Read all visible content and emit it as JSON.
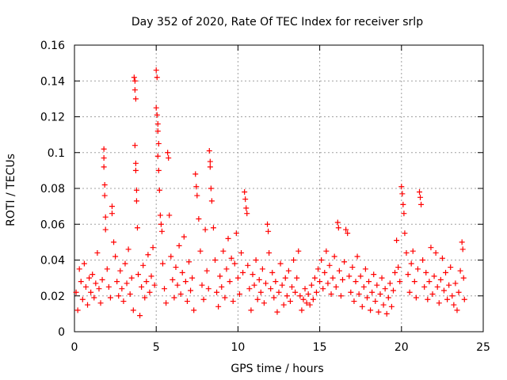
{
  "chart_data": {
    "type": "scatter",
    "title": "Day 352 of 2020, Rate Of TEC Index for receiver srlp",
    "xlabel": "GPS time / hours",
    "ylabel": "ROTI / TECUs",
    "xlim": [
      0,
      25
    ],
    "ylim": [
      0,
      0.16
    ],
    "x_ticks": [
      0,
      5,
      10,
      15,
      20,
      25
    ],
    "x_tick_labels": [
      "0",
      "5",
      "10",
      "15",
      "20",
      "25"
    ],
    "y_ticks": [
      0,
      0.02,
      0.04,
      0.06,
      0.08,
      0.1,
      0.12,
      0.14,
      0.16
    ],
    "y_tick_labels": [
      "0",
      "0.02",
      "0.04",
      "0.06",
      "0.08",
      "0.1",
      "0.12",
      "0.14",
      "0.16"
    ],
    "grid": true,
    "marker": "+",
    "color": "#ff0000",
    "series": [
      {
        "name": "ROTI",
        "points": [
          [
            0.1,
            0.022
          ],
          [
            0.2,
            0.012
          ],
          [
            0.3,
            0.035
          ],
          [
            0.4,
            0.028
          ],
          [
            0.5,
            0.018
          ],
          [
            0.6,
            0.038
          ],
          [
            0.7,
            0.025
          ],
          [
            0.8,
            0.015
          ],
          [
            0.9,
            0.03
          ],
          [
            1.0,
            0.022
          ],
          [
            1.1,
            0.032
          ],
          [
            1.2,
            0.019
          ],
          [
            1.3,
            0.027
          ],
          [
            1.4,
            0.044
          ],
          [
            1.5,
            0.024
          ],
          [
            1.6,
            0.016
          ],
          [
            1.7,
            0.029
          ],
          [
            1.8,
            0.102
          ],
          [
            1.8,
            0.097
          ],
          [
            1.8,
            0.092
          ],
          [
            1.85,
            0.082
          ],
          [
            1.85,
            0.076
          ],
          [
            1.9,
            0.064
          ],
          [
            1.9,
            0.057
          ],
          [
            2.0,
            0.035
          ],
          [
            2.1,
            0.025
          ],
          [
            2.2,
            0.019
          ],
          [
            2.3,
            0.07
          ],
          [
            2.3,
            0.066
          ],
          [
            2.4,
            0.05
          ],
          [
            2.5,
            0.042
          ],
          [
            2.6,
            0.028
          ],
          [
            2.7,
            0.02
          ],
          [
            2.8,
            0.034
          ],
          [
            2.9,
            0.024
          ],
          [
            3.0,
            0.017
          ],
          [
            3.1,
            0.038
          ],
          [
            3.2,
            0.027
          ],
          [
            3.3,
            0.046
          ],
          [
            3.4,
            0.021
          ],
          [
            3.5,
            0.03
          ],
          [
            3.6,
            0.012
          ],
          [
            3.65,
            0.142
          ],
          [
            3.7,
            0.14
          ],
          [
            3.7,
            0.135
          ],
          [
            3.75,
            0.13
          ],
          [
            3.7,
            0.104
          ],
          [
            3.75,
            0.094
          ],
          [
            3.75,
            0.09
          ],
          [
            3.8,
            0.079
          ],
          [
            3.8,
            0.073
          ],
          [
            3.85,
            0.058
          ],
          [
            3.9,
            0.032
          ],
          [
            4.0,
            0.009
          ],
          [
            4.1,
            0.025
          ],
          [
            4.2,
            0.037
          ],
          [
            4.3,
            0.019
          ],
          [
            4.4,
            0.028
          ],
          [
            4.5,
            0.043
          ],
          [
            4.6,
            0.022
          ],
          [
            4.7,
            0.031
          ],
          [
            4.8,
            0.047
          ],
          [
            4.9,
            0.026
          ],
          [
            5.0,
            0.146
          ],
          [
            5.05,
            0.142
          ],
          [
            5.0,
            0.125
          ],
          [
            5.05,
            0.121
          ],
          [
            5.1,
            0.116
          ],
          [
            5.1,
            0.112
          ],
          [
            5.15,
            0.105
          ],
          [
            5.1,
            0.098
          ],
          [
            5.15,
            0.09
          ],
          [
            5.2,
            0.079
          ],
          [
            5.25,
            0.065
          ],
          [
            5.3,
            0.06
          ],
          [
            5.35,
            0.056
          ],
          [
            5.4,
            0.038
          ],
          [
            5.5,
            0.024
          ],
          [
            5.6,
            0.016
          ],
          [
            5.7,
            0.1
          ],
          [
            5.75,
            0.097
          ],
          [
            5.8,
            0.065
          ],
          [
            5.9,
            0.042
          ],
          [
            6.0,
            0.029
          ],
          [
            6.1,
            0.019
          ],
          [
            6.2,
            0.036
          ],
          [
            6.3,
            0.026
          ],
          [
            6.4,
            0.048
          ],
          [
            6.5,
            0.021
          ],
          [
            6.6,
            0.033
          ],
          [
            6.7,
            0.053
          ],
          [
            6.8,
            0.028
          ],
          [
            6.9,
            0.017
          ],
          [
            7.0,
            0.039
          ],
          [
            7.1,
            0.023
          ],
          [
            7.2,
            0.03
          ],
          [
            7.3,
            0.012
          ],
          [
            7.4,
            0.088
          ],
          [
            7.45,
            0.081
          ],
          [
            7.5,
            0.076
          ],
          [
            7.6,
            0.063
          ],
          [
            7.7,
            0.045
          ],
          [
            7.8,
            0.026
          ],
          [
            7.9,
            0.018
          ],
          [
            8.0,
            0.057
          ],
          [
            8.1,
            0.034
          ],
          [
            8.2,
            0.024
          ],
          [
            8.25,
            0.101
          ],
          [
            8.3,
            0.095
          ],
          [
            8.3,
            0.092
          ],
          [
            8.35,
            0.08
          ],
          [
            8.4,
            0.073
          ],
          [
            8.5,
            0.058
          ],
          [
            8.6,
            0.04
          ],
          [
            8.7,
            0.022
          ],
          [
            8.8,
            0.014
          ],
          [
            8.9,
            0.031
          ],
          [
            9.0,
            0.025
          ],
          [
            9.1,
            0.045
          ],
          [
            9.2,
            0.019
          ],
          [
            9.3,
            0.035
          ],
          [
            9.4,
            0.052
          ],
          [
            9.5,
            0.028
          ],
          [
            9.6,
            0.041
          ],
          [
            9.7,
            0.017
          ],
          [
            9.8,
            0.038
          ],
          [
            9.9,
            0.055
          ],
          [
            10.0,
            0.03
          ],
          [
            10.1,
            0.021
          ],
          [
            10.2,
            0.044
          ],
          [
            10.3,
            0.033
          ],
          [
            10.4,
            0.078
          ],
          [
            10.45,
            0.074
          ],
          [
            10.5,
            0.069
          ],
          [
            10.55,
            0.066
          ],
          [
            10.6,
            0.037
          ],
          [
            10.7,
            0.024
          ],
          [
            10.8,
            0.012
          ],
          [
            10.9,
            0.032
          ],
          [
            11.0,
            0.026
          ],
          [
            11.1,
            0.04
          ],
          [
            11.2,
            0.018
          ],
          [
            11.3,
            0.029
          ],
          [
            11.4,
            0.022
          ],
          [
            11.5,
            0.035
          ],
          [
            11.6,
            0.016
          ],
          [
            11.7,
            0.027
          ],
          [
            11.8,
            0.06
          ],
          [
            11.85,
            0.056
          ],
          [
            11.9,
            0.044
          ],
          [
            12.0,
            0.024
          ],
          [
            12.1,
            0.033
          ],
          [
            12.2,
            0.019
          ],
          [
            12.3,
            0.028
          ],
          [
            12.4,
            0.011
          ],
          [
            12.5,
            0.022
          ],
          [
            12.6,
            0.038
          ],
          [
            12.7,
            0.026
          ],
          [
            12.8,
            0.015
          ],
          [
            12.9,
            0.03
          ],
          [
            13.0,
            0.02
          ],
          [
            13.1,
            0.034
          ],
          [
            13.2,
            0.017
          ],
          [
            13.3,
            0.025
          ],
          [
            13.4,
            0.04
          ],
          [
            13.5,
            0.022
          ],
          [
            13.6,
            0.03
          ],
          [
            13.7,
            0.045
          ],
          [
            13.8,
            0.02
          ],
          [
            13.9,
            0.012
          ],
          [
            14.0,
            0.018
          ],
          [
            14.1,
            0.024
          ],
          [
            14.2,
            0.016
          ],
          [
            14.3,
            0.021
          ],
          [
            14.4,
            0.015
          ],
          [
            14.5,
            0.026
          ],
          [
            14.6,
            0.018
          ],
          [
            14.7,
            0.03
          ],
          [
            14.8,
            0.022
          ],
          [
            14.9,
            0.035
          ],
          [
            15.0,
            0.028
          ],
          [
            15.1,
            0.04
          ],
          [
            15.2,
            0.024
          ],
          [
            15.3,
            0.033
          ],
          [
            15.4,
            0.045
          ],
          [
            15.5,
            0.027
          ],
          [
            15.6,
            0.037
          ],
          [
            15.7,
            0.021
          ],
          [
            15.8,
            0.03
          ],
          [
            15.9,
            0.042
          ],
          [
            16.0,
            0.025
          ],
          [
            16.1,
            0.061
          ],
          [
            16.15,
            0.058
          ],
          [
            16.2,
            0.034
          ],
          [
            16.3,
            0.02
          ],
          [
            16.4,
            0.029
          ],
          [
            16.5,
            0.039
          ],
          [
            16.6,
            0.057
          ],
          [
            16.7,
            0.055
          ],
          [
            16.8,
            0.031
          ],
          [
            16.9,
            0.022
          ],
          [
            17.0,
            0.036
          ],
          [
            17.1,
            0.017
          ],
          [
            17.2,
            0.028
          ],
          [
            17.3,
            0.042
          ],
          [
            17.4,
            0.021
          ],
          [
            17.5,
            0.031
          ],
          [
            17.6,
            0.014
          ],
          [
            17.7,
            0.025
          ],
          [
            17.8,
            0.035
          ],
          [
            17.9,
            0.019
          ],
          [
            18.0,
            0.028
          ],
          [
            18.1,
            0.012
          ],
          [
            18.2,
            0.022
          ],
          [
            18.3,
            0.032
          ],
          [
            18.4,
            0.017
          ],
          [
            18.5,
            0.026
          ],
          [
            18.6,
            0.011
          ],
          [
            18.7,
            0.021
          ],
          [
            18.8,
            0.03
          ],
          [
            18.9,
            0.015
          ],
          [
            19.0,
            0.024
          ],
          [
            19.1,
            0.01
          ],
          [
            19.2,
            0.019
          ],
          [
            19.3,
            0.027
          ],
          [
            19.4,
            0.014
          ],
          [
            19.5,
            0.023
          ],
          [
            19.6,
            0.033
          ],
          [
            19.7,
            0.051
          ],
          [
            19.8,
            0.036
          ],
          [
            19.9,
            0.028
          ],
          [
            20.0,
            0.081
          ],
          [
            20.05,
            0.077
          ],
          [
            20.1,
            0.071
          ],
          [
            20.15,
            0.066
          ],
          [
            20.2,
            0.055
          ],
          [
            20.3,
            0.044
          ],
          [
            20.4,
            0.032
          ],
          [
            20.5,
            0.022
          ],
          [
            20.6,
            0.038
          ],
          [
            20.7,
            0.045
          ],
          [
            20.8,
            0.028
          ],
          [
            20.9,
            0.019
          ],
          [
            21.0,
            0.035
          ],
          [
            21.1,
            0.078
          ],
          [
            21.15,
            0.075
          ],
          [
            21.2,
            0.071
          ],
          [
            21.3,
            0.04
          ],
          [
            21.4,
            0.025
          ],
          [
            21.5,
            0.033
          ],
          [
            21.6,
            0.018
          ],
          [
            21.7,
            0.028
          ],
          [
            21.8,
            0.047
          ],
          [
            21.9,
            0.021
          ],
          [
            22.0,
            0.031
          ],
          [
            22.1,
            0.044
          ],
          [
            22.2,
            0.025
          ],
          [
            22.3,
            0.016
          ],
          [
            22.4,
            0.029
          ],
          [
            22.5,
            0.041
          ],
          [
            22.6,
            0.023
          ],
          [
            22.7,
            0.033
          ],
          [
            22.8,
            0.018
          ],
          [
            22.9,
            0.026
          ],
          [
            23.0,
            0.036
          ],
          [
            23.1,
            0.02
          ],
          [
            23.2,
            0.015
          ],
          [
            23.3,
            0.027
          ],
          [
            23.4,
            0.012
          ],
          [
            23.5,
            0.022
          ],
          [
            23.6,
            0.034
          ],
          [
            23.7,
            0.05
          ],
          [
            23.75,
            0.046
          ],
          [
            23.8,
            0.03
          ],
          [
            23.85,
            0.018
          ]
        ]
      }
    ]
  }
}
